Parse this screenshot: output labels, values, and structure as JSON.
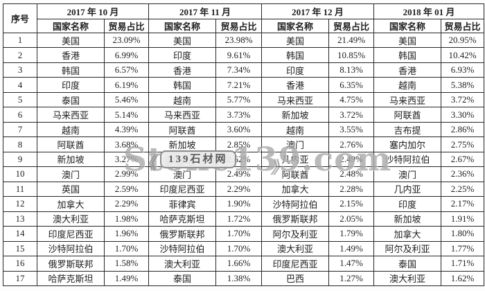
{
  "chart_data": {
    "type": "table",
    "serial_column": "序号",
    "sub_columns": [
      "国家名称",
      "贸易占比"
    ],
    "serials": [
      "1",
      "2",
      "3",
      "4",
      "5",
      "6",
      "7",
      "8",
      "9",
      "10",
      "11",
      "12",
      "13",
      "14",
      "15",
      "16",
      "17"
    ],
    "series": [
      {
        "month": "2017 年 10 月",
        "entries": [
          [
            "美国",
            "23.09%"
          ],
          [
            "香港",
            "6.99%"
          ],
          [
            "韩国",
            "6.57%"
          ],
          [
            "印度",
            "6.19%"
          ],
          [
            "泰国",
            "5.46%"
          ],
          [
            "马来西亚",
            "5.14%"
          ],
          [
            "越南",
            "4.39%"
          ],
          [
            "阿联酋",
            "3.68%"
          ],
          [
            "新加坡",
            "3.27%"
          ],
          [
            "澳门",
            "2.99%"
          ],
          [
            "英国",
            "2.59%"
          ],
          [
            "加拿大",
            "2.29%"
          ],
          [
            "澳大利亚",
            "1.98%"
          ],
          [
            "印度尼西亚",
            "1.96%"
          ],
          [
            "沙特阿拉伯",
            "1.70%"
          ],
          [
            "俄罗斯联邦",
            "1.58%"
          ],
          [
            "哈萨克斯坦",
            "1.49%"
          ]
        ]
      },
      {
        "month": "2017 年 11 月",
        "entries": [
          [
            "美国",
            "23.98%"
          ],
          [
            "印度",
            "9.61%"
          ],
          [
            "香港",
            "7.34%"
          ],
          [
            "韩国",
            "7.21%"
          ],
          [
            "越南",
            "5.77%"
          ],
          [
            "马来西亚",
            "3.73%"
          ],
          [
            "阿联酋",
            "3.60%"
          ],
          [
            "新加坡",
            "2.85%"
          ],
          [
            "加拿大",
            "2.62%"
          ],
          [
            "澳门",
            "2.49%"
          ],
          [
            "印度尼西亚",
            "2.29%"
          ],
          [
            "菲律宾",
            "1.90%"
          ],
          [
            "哈萨克斯坦",
            "1.72%"
          ],
          [
            "俄罗斯联邦",
            "1.70%"
          ],
          [
            "沙特阿拉伯",
            "1.70%"
          ],
          [
            "澳大利亚",
            "1.66%"
          ],
          [
            "泰国",
            "1.38%"
          ]
        ]
      },
      {
        "month": "2017 年 12 月",
        "entries": [
          [
            "美国",
            "21.49%"
          ],
          [
            "韩国",
            "10.85%"
          ],
          [
            "印度",
            "8.13%"
          ],
          [
            "香港",
            "6.35%"
          ],
          [
            "马来西亚",
            "4.75%"
          ],
          [
            "新加坡",
            "3.72%"
          ],
          [
            "越南",
            "3.55%"
          ],
          [
            "澳门",
            "2.76%"
          ],
          [
            "几内亚",
            "2.49%"
          ],
          [
            "阿联酋",
            "2.48%"
          ],
          [
            "加拿大",
            "2.28%"
          ],
          [
            "沙特阿拉伯",
            "2.15%"
          ],
          [
            "俄罗斯联邦",
            "2.05%"
          ],
          [
            "阿尔及利亚",
            "1.79%"
          ],
          [
            "澳大利亚",
            "1.49%"
          ],
          [
            "印度尼西亚",
            "1.47%"
          ],
          [
            "巴西",
            "1.27%"
          ]
        ]
      },
      {
        "month": "2018 年 01 月",
        "entries": [
          [
            "美国",
            "20.95%"
          ],
          [
            "韩国",
            "10.42%"
          ],
          [
            "香港",
            "6.93%"
          ],
          [
            "越南",
            "5.38%"
          ],
          [
            "马来西亚",
            "3.72%"
          ],
          [
            "阿联酋",
            "3.30%"
          ],
          [
            "吉布提",
            "2.86%"
          ],
          [
            "塞内加尔",
            "2.75%"
          ],
          [
            "沙特阿拉伯",
            "2.67%"
          ],
          [
            "澳门",
            "2.36%"
          ],
          [
            "几内亚",
            "2.25%"
          ],
          [
            "印度",
            "2.17%"
          ],
          [
            "新加坡",
            "1.91%"
          ],
          [
            "加拿大",
            "1.80%"
          ],
          [
            "阿尔及利亚",
            "1.77%"
          ],
          [
            "泰国",
            "1.71%"
          ],
          [
            "澳大利亚",
            "1.62%"
          ]
        ]
      }
    ]
  },
  "watermark": {
    "badge": "139石材网",
    "brand": "Stone139.com",
    "quote_left": "《",
    "quote_right": "》"
  },
  "colors": {
    "border": "#262626",
    "text": "#1d1d1d",
    "watermark_gray": "#8c8c8c"
  }
}
